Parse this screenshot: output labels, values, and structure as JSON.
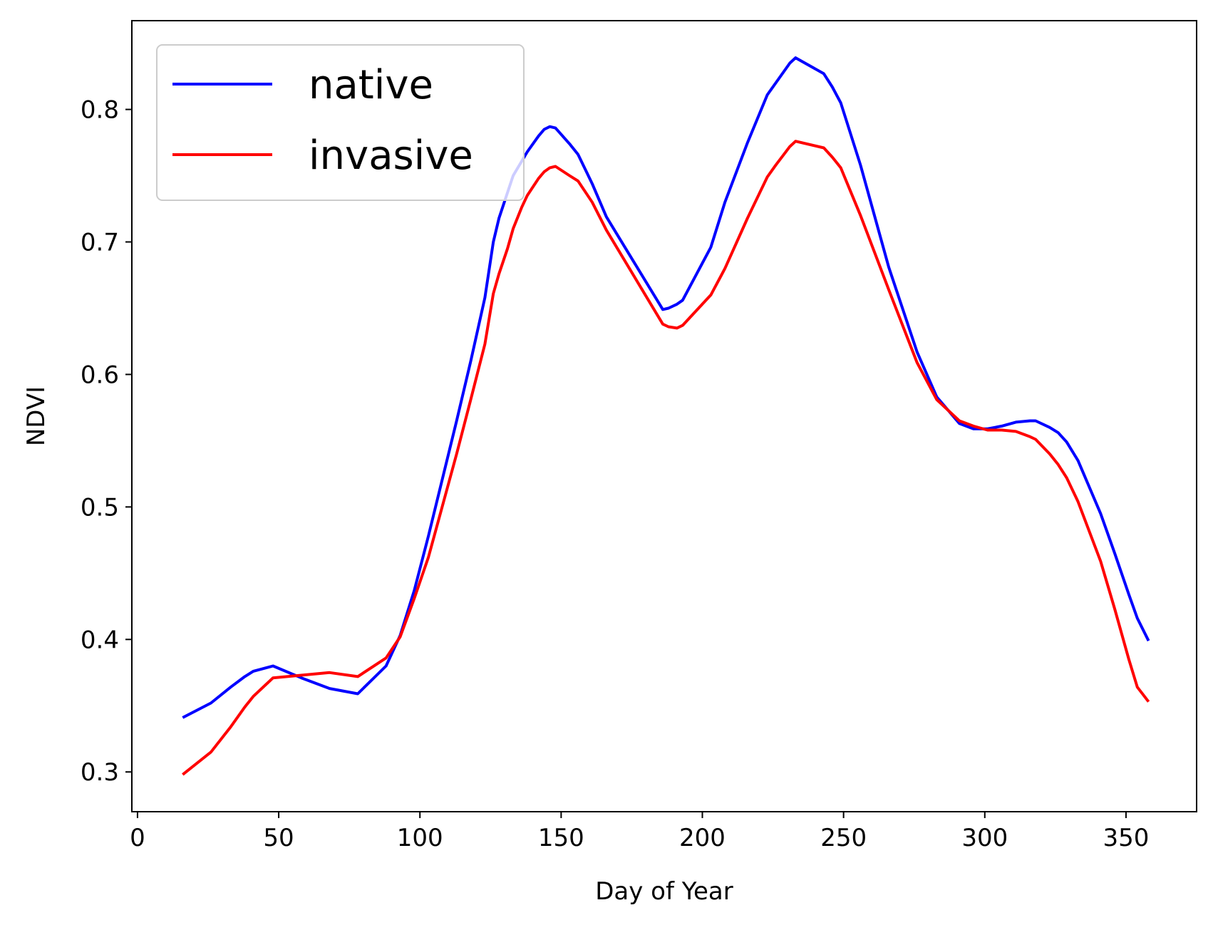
{
  "chart_data": {
    "type": "line",
    "xlabel": "Day of Year",
    "ylabel": "NDVI",
    "xlim": [
      -2,
      375
    ],
    "ylim": [
      0.27,
      0.867
    ],
    "xticks": [
      0,
      50,
      100,
      150,
      200,
      250,
      300,
      350
    ],
    "yticks": [
      0.3,
      0.4,
      0.5,
      0.6,
      0.7,
      0.8
    ],
    "grid": false,
    "legend_position": "upper-left",
    "series": [
      {
        "name": "native",
        "color": "#0000ff",
        "x": [
          16,
          26,
          33,
          38,
          41,
          48,
          58,
          68,
          78,
          88,
          93,
          98,
          103,
          113,
          118,
          123,
          126,
          128,
          133,
          138,
          142,
          144,
          146,
          148,
          153,
          156,
          161,
          166,
          186,
          188,
          191,
          193,
          203,
          208,
          216,
          223,
          226,
          231,
          233,
          243,
          246,
          249,
          256,
          266,
          276,
          283,
          291,
          296,
          301,
          306,
          311,
          316,
          318,
          323,
          326,
          329,
          333,
          341,
          346,
          351,
          354,
          358
        ],
        "y": [
          0.341,
          0.352,
          0.364,
          0.372,
          0.376,
          0.38,
          0.371,
          0.363,
          0.359,
          0.38,
          0.403,
          0.437,
          0.478,
          0.565,
          0.61,
          0.658,
          0.7,
          0.718,
          0.75,
          0.768,
          0.78,
          0.785,
          0.787,
          0.786,
          0.774,
          0.766,
          0.744,
          0.719,
          0.649,
          0.65,
          0.653,
          0.656,
          0.696,
          0.73,
          0.775,
          0.811,
          0.82,
          0.835,
          0.839,
          0.827,
          0.817,
          0.805,
          0.758,
          0.681,
          0.617,
          0.583,
          0.563,
          0.559,
          0.559,
          0.561,
          0.564,
          0.565,
          0.565,
          0.56,
          0.556,
          0.549,
          0.535,
          0.495,
          0.465,
          0.434,
          0.416,
          0.399
        ]
      },
      {
        "name": "invasive",
        "color": "#ff0000",
        "x": [
          16,
          26,
          33,
          38,
          41,
          48,
          58,
          68,
          78,
          88,
          93,
          98,
          103,
          113,
          118,
          123,
          126,
          128,
          131,
          133,
          136,
          138,
          142,
          144,
          146,
          148,
          153,
          156,
          161,
          166,
          186,
          188,
          191,
          193,
          203,
          208,
          216,
          223,
          226,
          231,
          233,
          243,
          246,
          249,
          256,
          266,
          276,
          283,
          291,
          296,
          301,
          306,
          311,
          316,
          318,
          323,
          326,
          329,
          333,
          341,
          346,
          351,
          354,
          358
        ],
        "y": [
          0.298,
          0.315,
          0.334,
          0.349,
          0.357,
          0.371,
          0.373,
          0.375,
          0.372,
          0.386,
          0.402,
          0.431,
          0.462,
          0.54,
          0.581,
          0.623,
          0.661,
          0.676,
          0.695,
          0.71,
          0.726,
          0.735,
          0.748,
          0.753,
          0.756,
          0.757,
          0.75,
          0.746,
          0.73,
          0.709,
          0.638,
          0.636,
          0.635,
          0.637,
          0.66,
          0.68,
          0.718,
          0.749,
          0.758,
          0.772,
          0.776,
          0.771,
          0.764,
          0.756,
          0.72,
          0.664,
          0.609,
          0.581,
          0.565,
          0.561,
          0.558,
          0.558,
          0.557,
          0.553,
          0.551,
          0.54,
          0.532,
          0.522,
          0.504,
          0.459,
          0.423,
          0.385,
          0.364,
          0.353
        ]
      }
    ]
  }
}
